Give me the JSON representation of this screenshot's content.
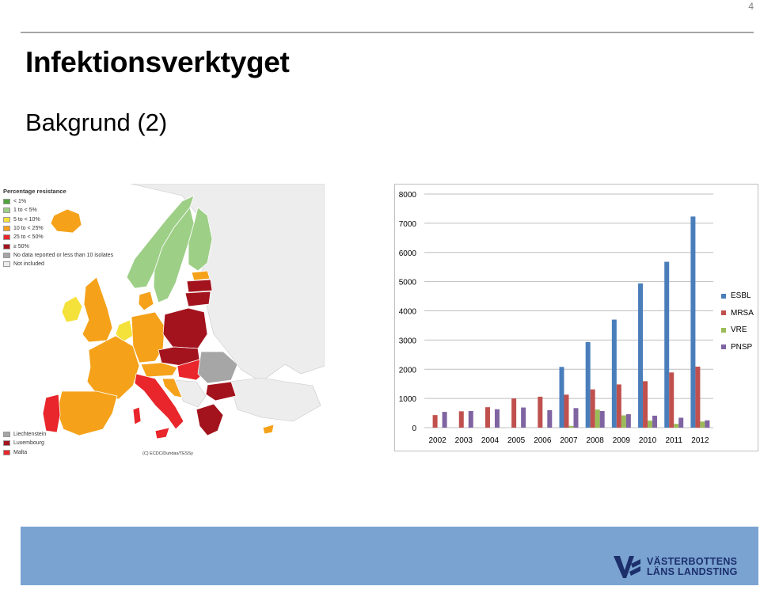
{
  "page": {
    "number": "4",
    "title": "Infektionsverktyget",
    "subtitle": "Bakgrund (2)"
  },
  "map": {
    "legend_title": "Percentage resistance",
    "legend": [
      {
        "label": "< 1%",
        "color": "#4fa33a"
      },
      {
        "label": "1 to < 5%",
        "color": "#9dcf86"
      },
      {
        "label": "5 to < 10%",
        "color": "#f4e13a"
      },
      {
        "label": "10 to < 25%",
        "color": "#f5a21a"
      },
      {
        "label": "25 to < 50%",
        "color": "#e8262b"
      },
      {
        "label": "≥ 50%",
        "color": "#a3131d"
      },
      {
        "label": "No data reported or less than 10 isolates",
        "color": "#a6a6a6"
      },
      {
        "label": "Not included",
        "color": "#ededed"
      }
    ],
    "small_countries": [
      {
        "label": "Liechtenstein",
        "color": "#a6a6a6"
      },
      {
        "label": "Luxembourg",
        "color": "#a3131d"
      },
      {
        "label": "Malta",
        "color": "#e8262b"
      }
    ],
    "copyright": "(C) ECDC/Dundas/TESSy"
  },
  "chart_data": {
    "type": "bar",
    "categories": [
      "2002",
      "2003",
      "2004",
      "2005",
      "2006",
      "2007",
      "2008",
      "2009",
      "2010",
      "2011",
      "2012"
    ],
    "series": [
      {
        "name": "ESBL",
        "color": "#4a7ebb",
        "values": [
          0,
          0,
          0,
          0,
          0,
          2080,
          2930,
          3700,
          4940,
          5680,
          7230
        ]
      },
      {
        "name": "MRSA",
        "color": "#c0504d",
        "values": [
          430,
          560,
          700,
          1000,
          1060,
          1130,
          1310,
          1480,
          1590,
          1890,
          2090
        ]
      },
      {
        "name": "VRE",
        "color": "#9bbb59",
        "values": [
          0,
          0,
          0,
          0,
          0,
          60,
          620,
          420,
          240,
          130,
          210
        ]
      },
      {
        "name": "PNSP",
        "color": "#8064a2",
        "values": [
          540,
          570,
          630,
          690,
          600,
          670,
          570,
          460,
          410,
          340,
          250
        ]
      }
    ],
    "ylim": [
      0,
      8000
    ],
    "yticks": [
      0,
      1000,
      2000,
      3000,
      4000,
      5000,
      6000,
      7000,
      8000
    ],
    "grid": true,
    "legend_position": "right"
  },
  "footer": {
    "band_color": "#7aa3d2",
    "logo_line1": "VÄSTERBOTTENS",
    "logo_line2": "LÄNS LANDSTING"
  }
}
